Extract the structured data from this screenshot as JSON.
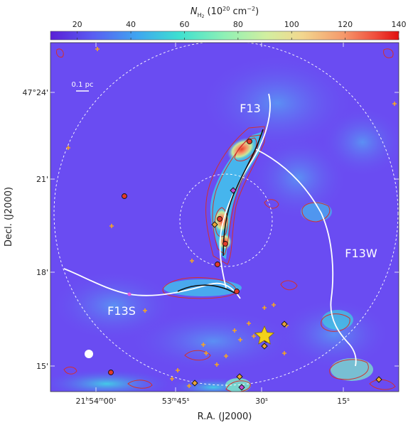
{
  "colorbar": {
    "label_prefix": "N",
    "label_sub": "H",
    "label_sub2": "2",
    "label_unit": " (10",
    "label_exp": "20",
    "label_unit2": " cm",
    "label_exp2": "−2",
    "label_close": ")",
    "ticks": [
      "20",
      "40",
      "60",
      "80",
      "100",
      "120",
      "140"
    ],
    "stops": [
      "#5a1fd6",
      "#5a5cf2",
      "#3fa6f0",
      "#3ee0d0",
      "#8ff0b5",
      "#d2efa0",
      "#f2d88f",
      "#f59a6c",
      "#f0503e",
      "#e01010"
    ]
  },
  "chart_data": {
    "type": "heatmap",
    "title": "",
    "xlabel": "R.A. (J2000)",
    "ylabel": "Decl. (J2000)",
    "colorbar_range": [
      10,
      140
    ],
    "x_ticks": [
      "21h54m00s",
      "53m45s",
      "30s",
      "15s"
    ],
    "y_ticks": [
      "47°24'",
      "21'",
      "18'",
      "15'"
    ],
    "annotations": [
      "F13",
      "F13W",
      "F13S",
      "0.1 pc"
    ],
    "filaments": [
      "F13",
      "F13W",
      "F13S"
    ]
  },
  "labels": {
    "x_axis": "R.A. (J2000)",
    "y_axis": "Decl. (J2000)",
    "x_ticks": [
      {
        "main": "21",
        "h": "h",
        "mid": "54",
        "m": "m",
        "rest": "00",
        "s": "s"
      },
      {
        "main": "",
        "h": "",
        "mid": "53",
        "m": "m",
        "rest": "45",
        "s": "s"
      },
      {
        "main": "",
        "h": "",
        "mid": "",
        "m": "",
        "rest": "30",
        "s": "s"
      },
      {
        "main": "",
        "h": "",
        "mid": "",
        "m": "",
        "rest": "15",
        "s": "s"
      }
    ],
    "y_ticks": [
      "47°24'",
      "21'",
      "18'",
      "15'"
    ],
    "filament_f13": "F13",
    "filament_f13w": "F13W",
    "filament_f13s": "F13S",
    "scalebar": "0.1 pc"
  },
  "colors": {
    "background_map": "#6a4cf2",
    "contour": "#d2302e",
    "filament_line": "#ffffff",
    "spine_line": "#111111",
    "star": "#f3d21a",
    "protostar": "#e23a2a",
    "yso_cross": "#f5a623",
    "prestellar_diamond": "#e8a33a"
  }
}
